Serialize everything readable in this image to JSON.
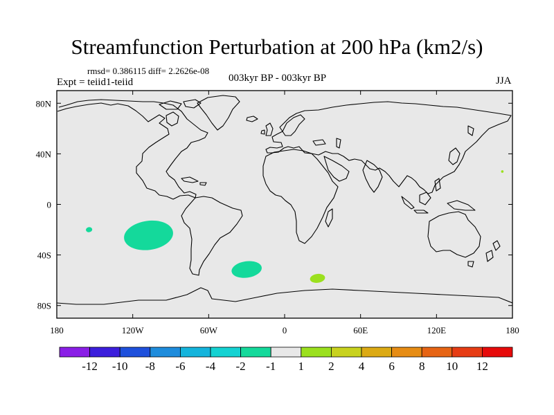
{
  "header": {
    "title": "Streamfunction Perturbation at 200 hPa (km2/s)",
    "stats": "rmsd= 0.386115 diff= 2.2626e-08",
    "experiment": "Expt = teiid1-teiid",
    "period": "003kyr BP - 003kyr BP",
    "season": "JJA"
  },
  "chart_data": {
    "type": "map",
    "projection": "cylindrical-equidistant",
    "xlim": [
      -180,
      180
    ],
    "ylim": [
      -90,
      90
    ],
    "x_ticks": [
      {
        "value": -180,
        "label": "180"
      },
      {
        "value": -120,
        "label": "120W"
      },
      {
        "value": -60,
        "label": "60W"
      },
      {
        "value": 0,
        "label": "0"
      },
      {
        "value": 60,
        "label": "60E"
      },
      {
        "value": 120,
        "label": "120E"
      },
      {
        "value": 180,
        "label": "180"
      }
    ],
    "y_ticks": [
      {
        "value": 80,
        "label": "80N"
      },
      {
        "value": 40,
        "label": "40N"
      },
      {
        "value": 0,
        "label": "0"
      },
      {
        "value": -40,
        "label": "40S"
      },
      {
        "value": -80,
        "label": "80S"
      }
    ],
    "background_color": "#e8e8e8",
    "field_regions": [
      {
        "label": "southeast Pacific negative anomaly",
        "bin": "-2 to -1",
        "color": "#14d99b",
        "lon": [
          -127,
          -88
        ],
        "lat": [
          -36,
          -13
        ]
      },
      {
        "label": "South Atlantic negative anomaly",
        "bin": "-2 to -1",
        "color": "#14d99b",
        "lon": [
          -42,
          -18
        ],
        "lat": [
          -58,
          -45
        ]
      },
      {
        "label": "South Pacific small negative anomaly",
        "bin": "-2 to -1",
        "color": "#14d99b",
        "lon": [
          -157,
          -152
        ],
        "lat": [
          -22,
          -18
        ]
      },
      {
        "label": "Southern Ocean positive anomaly",
        "bin": "1 to 2",
        "color": "#9be01e",
        "lon": [
          20,
          32
        ],
        "lat": [
          -62,
          -55
        ]
      },
      {
        "label": "northwest Pacific small positive anomaly",
        "bin": "1 to 2",
        "color": "#9be01e",
        "lon": [
          171,
          173
        ],
        "lat": [
          25,
          27
        ]
      }
    ],
    "colorbar": {
      "levels": [
        "-12",
        "-10",
        "-8",
        "-6",
        "-4",
        "-2",
        "-1",
        "1",
        "2",
        "4",
        "6",
        "8",
        "10",
        "12"
      ],
      "colors": [
        "#8a1ee6",
        "#3c1edc",
        "#1e50dc",
        "#1e8cdc",
        "#14b4dc",
        "#14d2d2",
        "#14d99b",
        "#e8e8e8",
        "#9be01e",
        "#c8d21e",
        "#dcaa14",
        "#e68c14",
        "#e66414",
        "#e63c14",
        "#e60a0a"
      ]
    }
  }
}
